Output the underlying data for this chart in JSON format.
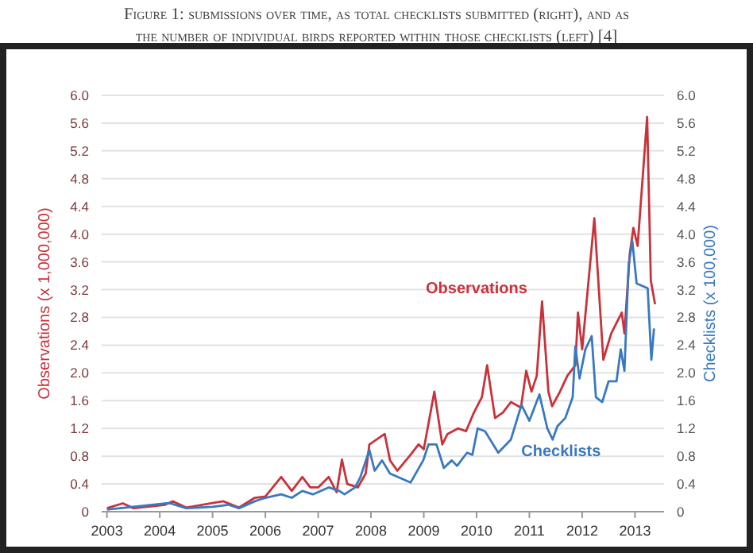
{
  "chart_data": {
    "type": "line",
    "title": "Figure 1: submissions over time, as total checklists submitted (right), and as the number of individual birds reported within those checklists (left) [4]",
    "ylabel": "Observations (x 1,000,000)",
    "y2label": "Checklists (x 100,000)",
    "xlim": [
      2002.9,
      2013.55
    ],
    "xticks": [
      2003,
      2004,
      2005,
      2006,
      2007,
      2008,
      2009,
      2010,
      2011,
      2012,
      2013
    ],
    "ylim": [
      0,
      6
    ],
    "yticks": [
      {
        "value": 0,
        "label": "0"
      },
      {
        "value": 0.4,
        "label": "0.4"
      },
      {
        "value": 0.8,
        "label": "0.8"
      },
      {
        "value": 1.2,
        "label": "1.2"
      },
      {
        "value": 1.6,
        "label": "1.6"
      },
      {
        "value": 2,
        "label": "2.0"
      },
      {
        "value": 2.4,
        "label": "2.4"
      },
      {
        "value": 2.8,
        "label": "2.8"
      },
      {
        "value": 3.2,
        "label": "3.2"
      },
      {
        "value": 3.6,
        "label": "3.6"
      },
      {
        "value": 4,
        "label": "4.0"
      },
      {
        "value": 4.4,
        "label": "4.4"
      },
      {
        "value": 4.8,
        "label": "4.8"
      },
      {
        "value": 5.2,
        "label": "5.2"
      },
      {
        "value": 5.6,
        "label": "5.6"
      },
      {
        "value": 6,
        "label": "6.0"
      }
    ],
    "y2lim": [
      0,
      6
    ],
    "y2ticks": [
      {
        "value": 0,
        "label": "0"
      },
      {
        "value": 0.4,
        "label": "0.4"
      },
      {
        "value": 0.8,
        "label": "0.8"
      },
      {
        "value": 1.2,
        "label": "1.2"
      },
      {
        "value": 1.6,
        "label": "1.6"
      },
      {
        "value": 2,
        "label": "2.0"
      },
      {
        "value": 2.4,
        "label": "2.4"
      },
      {
        "value": 2.8,
        "label": "2.8"
      },
      {
        "value": 3.2,
        "label": "3.2"
      },
      {
        "value": 3.6,
        "label": "3.6"
      },
      {
        "value": 4,
        "label": "4.0"
      },
      {
        "value": 4.4,
        "label": "4.4"
      },
      {
        "value": 4.8,
        "label": "4.8"
      },
      {
        "value": 5.2,
        "label": "5.2"
      },
      {
        "value": 5.6,
        "label": "5.6"
      },
      {
        "value": 6,
        "label": "6.0"
      }
    ],
    "grid": "y",
    "legend": false,
    "series": [
      {
        "name": "Observations",
        "color": "#c8323a",
        "x": [
          2003,
          2003.3,
          2003.5,
          2004.1,
          2004.25,
          2004.5,
          2005.2,
          2005.5,
          2005.8,
          2006,
          2006.3,
          2006.5,
          2006.7,
          2006.85,
          2007,
          2007.2,
          2007.35,
          2007.45,
          2007.55,
          2007.75,
          2007.9,
          2007.97,
          2008.26,
          2008.36,
          2008.5,
          2008.75,
          2008.9,
          2009,
          2009.2,
          2009.35,
          2009.45,
          2009.65,
          2009.8,
          2009.95,
          2010.1,
          2010.2,
          2010.35,
          2010.5,
          2010.65,
          2010.84,
          2010.94,
          2011.04,
          2011.14,
          2011.24,
          2011.36,
          2011.43,
          2011.58,
          2011.72,
          2011.87,
          2011.92,
          2012,
          2012.23,
          2012.4,
          2012.55,
          2012.75,
          2012.8,
          2012.9,
          2012.97,
          2013.05,
          2013.23,
          2013.3,
          2013.38
        ],
        "values": [
          0.05,
          0.12,
          0.05,
          0.1,
          0.15,
          0.06,
          0.15,
          0.06,
          0.2,
          0.22,
          0.5,
          0.3,
          0.5,
          0.35,
          0.35,
          0.5,
          0.28,
          0.75,
          0.4,
          0.35,
          0.55,
          0.97,
          1.12,
          0.74,
          0.59,
          0.82,
          0.97,
          0.9,
          1.73,
          0.97,
          1.12,
          1.2,
          1.16,
          1.43,
          1.65,
          2.11,
          1.35,
          1.43,
          1.58,
          1.5,
          2.03,
          1.73,
          1.96,
          3.03,
          1.73,
          1.52,
          1.73,
          1.96,
          2.11,
          2.87,
          2.34,
          4.23,
          2.19,
          2.57,
          2.87,
          2.57,
          3.71,
          4.09,
          3.83,
          5.69,
          3.33,
          2.99
        ]
      },
      {
        "name": "Checklists",
        "color": "#3a78c0",
        "axis": "y2",
        "x": [
          2003,
          2004.1,
          2004.2,
          2004.5,
          2005,
          2005.3,
          2005.5,
          2005.8,
          2006,
          2006.3,
          2006.5,
          2006.7,
          2006.9,
          2007.2,
          2007.4,
          2007.5,
          2007.7,
          2007.8,
          2007.97,
          2008.07,
          2008.21,
          2008.36,
          2008.75,
          2008.99,
          2009.09,
          2009.24,
          2009.38,
          2009.53,
          2009.63,
          2009.82,
          2009.92,
          2010.02,
          2010.16,
          2010.41,
          2010.65,
          2010.85,
          2011,
          2011.19,
          2011.34,
          2011.44,
          2011.53,
          2011.68,
          2011.82,
          2011.87,
          2011.95,
          2012.06,
          2012.18,
          2012.26,
          2012.38,
          2012.5,
          2012.65,
          2012.73,
          2012.8,
          2012.88,
          2012.95,
          2013.03,
          2013.24,
          2013.31,
          2013.36
        ],
        "values": [
          0.03,
          0.12,
          0.12,
          0.05,
          0.07,
          0.1,
          0.05,
          0.15,
          0.2,
          0.25,
          0.2,
          0.3,
          0.25,
          0.35,
          0.3,
          0.25,
          0.35,
          0.5,
          0.89,
          0.59,
          0.74,
          0.55,
          0.42,
          0.74,
          0.97,
          0.97,
          0.63,
          0.74,
          0.66,
          0.85,
          0.82,
          1.2,
          1.16,
          0.85,
          1.04,
          1.54,
          1.31,
          1.69,
          1.2,
          1.04,
          1.23,
          1.35,
          1.65,
          2.38,
          1.92,
          2.34,
          2.53,
          1.65,
          1.58,
          1.88,
          1.88,
          2.34,
          2.03,
          3.56,
          3.9,
          3.29,
          3.22,
          2.19,
          2.64
        ]
      }
    ]
  }
}
